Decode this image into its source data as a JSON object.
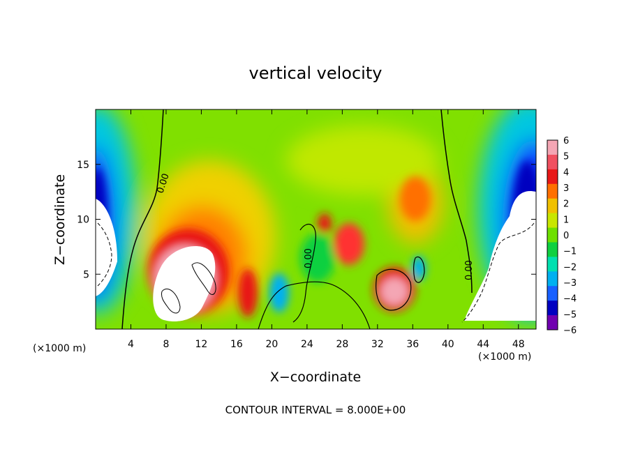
{
  "chart_data": {
    "type": "heatmap",
    "title": "vertical velocity",
    "xlabel": "X−coordinate",
    "ylabel": "Z−coordinate",
    "x_unit_left": "(×1000 m)",
    "x_unit_right": "(×1000 m)",
    "footer": "CONTOUR INTERVAL = 8.000E+00",
    "xlim": [
      0,
      50
    ],
    "ylim": [
      0,
      20
    ],
    "x_ticks": [
      4,
      8,
      12,
      16,
      20,
      24,
      28,
      32,
      36,
      40,
      44,
      48
    ],
    "y_ticks": [
      5,
      10,
      15
    ],
    "colorbar": {
      "range": [
        -6,
        6
      ],
      "labels": [
        6,
        5,
        4,
        3,
        2,
        1,
        0,
        -1,
        -2,
        -3,
        -4,
        -5,
        -6
      ],
      "colors": [
        "#f4a6b4",
        "#f05060",
        "#e81818",
        "#ff7000",
        "#f0c000",
        "#c8e600",
        "#6ee000",
        "#10d040",
        "#00e0b0",
        "#00b0f0",
        "#1860ff",
        "#0000c0",
        "#7000b0"
      ]
    },
    "contour_labels": [
      "0.00",
      "0.00",
      "0.00"
    ],
    "features": [
      {
        "x": 11,
        "z": 5,
        "w": 7
      },
      {
        "x": 12,
        "z": 9,
        "w": 3
      },
      {
        "x": 17.5,
        "z": 3,
        "w": 5
      },
      {
        "x": 33.5,
        "z": 3.5,
        "w": 6.5
      },
      {
        "x": 36,
        "z": 11.5,
        "w": 3.5
      },
      {
        "x": 29,
        "z": 8,
        "w": 4
      },
      {
        "x": 25,
        "z": 9,
        "w": 4
      },
      {
        "x": 2,
        "z": 13,
        "w": -5
      },
      {
        "x": 47.5,
        "z": 12,
        "w": -5
      },
      {
        "x": 22,
        "z": 2,
        "w": -2
      },
      {
        "x": 37,
        "z": 5,
        "w": -2.5
      }
    ]
  }
}
